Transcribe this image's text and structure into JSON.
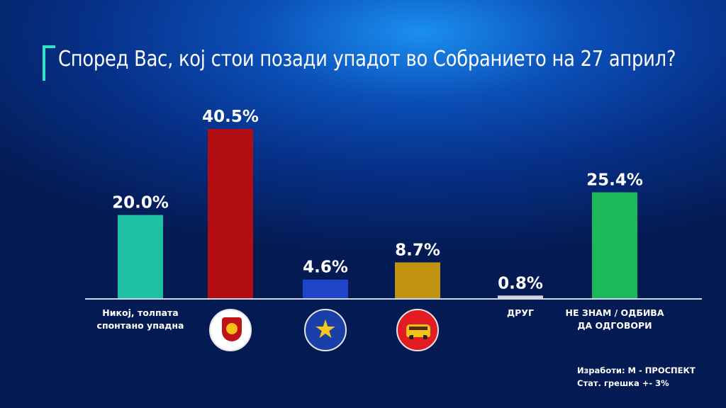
{
  "title": "Според Вас, кој стои позади упадот во Собранието на 27 април?",
  "chart_data": {
    "type": "bar",
    "title": "Според Вас, кој стои позади упадот во Собранието на 27 април?",
    "xlabel": "",
    "ylabel": "",
    "ylim": [
      0,
      45
    ],
    "grid": false,
    "unit": "%",
    "bars": [
      {
        "category": "Никој, толпата спонтано упадна",
        "label_lines": [
          "Никој, толпата",
          "спонтано упадна"
        ],
        "value": 20.0,
        "value_label": "20.0%",
        "color": "#1fbfa3",
        "logo": ""
      },
      {
        "category": "",
        "label_lines": [],
        "value": 40.5,
        "value_label": "40.5%",
        "color": "#b10d12",
        "logo": "vmro-logo-icon"
      },
      {
        "category": "",
        "label_lines": [],
        "value": 4.6,
        "value_label": "4.6%",
        "color": "#1f44c7",
        "logo": "star-logo-icon"
      },
      {
        "category": "",
        "label_lines": [],
        "value": 8.7,
        "value_label": "8.7%",
        "color": "#bf9310",
        "logo": "bus-logo-icon"
      },
      {
        "category": "ДРУГ",
        "label_lines": [
          "ДРУГ"
        ],
        "value": 0.8,
        "value_label": "0.8%",
        "color": "#d6d6d6",
        "logo": ""
      },
      {
        "category": "НЕ ЗНАМ / ОДБИВА ДА ОДГОВОРИ",
        "label_lines": [
          "НЕ ЗНАМ / ОДБИВА",
          "ДА ОДГОВОРИ"
        ],
        "value": 25.4,
        "value_label": "25.4%",
        "color": "#1db85a",
        "logo": ""
      }
    ]
  },
  "credits": {
    "line1": "Изработи: М - ПРОСПЕКТ",
    "line2": "Стат. грешка +- 3%"
  }
}
